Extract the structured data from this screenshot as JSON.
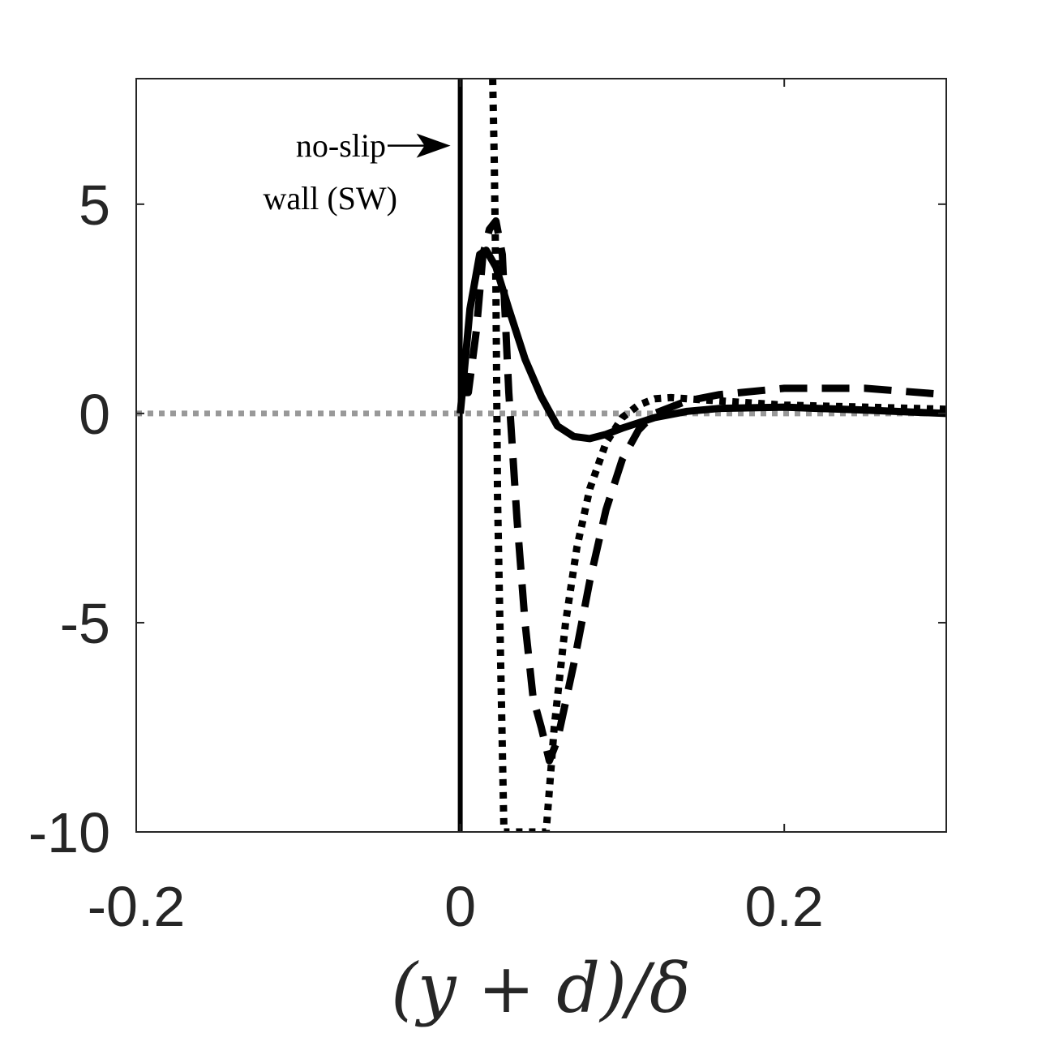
{
  "chart_data": {
    "type": "line",
    "title": "",
    "xlabel": "(y + d)/δ",
    "ylabel": "",
    "xlim": [
      -0.2,
      0.3
    ],
    "ylim": [
      -10,
      8
    ],
    "grid": false,
    "x_ticks": [
      -0.2,
      0,
      0.2
    ],
    "x_tick_labels": [
      "-0.2",
      "0",
      "0.2"
    ],
    "y_ticks": [
      5,
      0,
      -5,
      -10
    ],
    "y_tick_labels": [
      "5",
      "0",
      "-5",
      "-10"
    ],
    "annotations": {
      "line1": "no-slip",
      "line2": "wall (SW)",
      "arrow_target": {
        "x": -0.006,
        "y": 6.4
      }
    },
    "reference_lines": [
      {
        "kind": "vertical",
        "x": 0,
        "style": "solid",
        "color": "#000000"
      },
      {
        "kind": "horizontal",
        "y": 0,
        "style": "dotted",
        "color": "#999999"
      }
    ],
    "series": [
      {
        "style": "solid",
        "color": "#000000",
        "points": [
          [
            0,
            0
          ],
          [
            0.002,
            0.8
          ],
          [
            0.006,
            2.5
          ],
          [
            0.012,
            3.8
          ],
          [
            0.016,
            3.9
          ],
          [
            0.022,
            3.5
          ],
          [
            0.03,
            2.5
          ],
          [
            0.04,
            1.3
          ],
          [
            0.05,
            0.4
          ],
          [
            0.06,
            -0.3
          ],
          [
            0.07,
            -0.55
          ],
          [
            0.08,
            -0.6
          ],
          [
            0.09,
            -0.5
          ],
          [
            0.1,
            -0.35
          ],
          [
            0.12,
            -0.1
          ],
          [
            0.14,
            0.05
          ],
          [
            0.16,
            0.12
          ],
          [
            0.2,
            0.15
          ],
          [
            0.25,
            0.08
          ],
          [
            0.3,
            0.0
          ]
        ]
      },
      {
        "style": "dashed",
        "color": "#000000",
        "points": [
          [
            0,
            0.5
          ],
          [
            0.005,
            0.5
          ],
          [
            0.01,
            2.0
          ],
          [
            0.014,
            3.8
          ],
          [
            0.018,
            4.4
          ],
          [
            0.022,
            4.6
          ],
          [
            0.026,
            3.8
          ],
          [
            0.03,
            0.5
          ],
          [
            0.035,
            -2.5
          ],
          [
            0.04,
            -5.0
          ],
          [
            0.045,
            -6.8
          ],
          [
            0.05,
            -7.5
          ],
          [
            0.055,
            -8.3
          ],
          [
            0.06,
            -7.8
          ],
          [
            0.07,
            -6.0
          ],
          [
            0.08,
            -4.0
          ],
          [
            0.09,
            -2.3
          ],
          [
            0.1,
            -1.1
          ],
          [
            0.11,
            -0.4
          ],
          [
            0.12,
            0.0
          ],
          [
            0.14,
            0.3
          ],
          [
            0.16,
            0.45
          ],
          [
            0.2,
            0.6
          ],
          [
            0.25,
            0.6
          ],
          [
            0.3,
            0.45
          ]
        ]
      },
      {
        "style": "dotted",
        "color": "#000000",
        "points": [
          [
            0.02,
            8.0
          ],
          [
            0.021,
            6.0
          ],
          [
            0.022,
            3.0
          ],
          [
            0.023,
            -2.0
          ],
          [
            0.025,
            -6.0
          ],
          [
            0.027,
            -10.0
          ],
          [
            0.053,
            -10.0
          ],
          [
            0.058,
            -7.5
          ],
          [
            0.065,
            -5.0
          ],
          [
            0.072,
            -3.2
          ],
          [
            0.08,
            -1.8
          ],
          [
            0.09,
            -0.7
          ],
          [
            0.1,
            -0.1
          ],
          [
            0.11,
            0.2
          ],
          [
            0.12,
            0.35
          ],
          [
            0.13,
            0.38
          ],
          [
            0.14,
            0.35
          ],
          [
            0.16,
            0.3
          ],
          [
            0.2,
            0.2
          ],
          [
            0.25,
            0.15
          ],
          [
            0.3,
            0.1
          ]
        ]
      }
    ]
  }
}
